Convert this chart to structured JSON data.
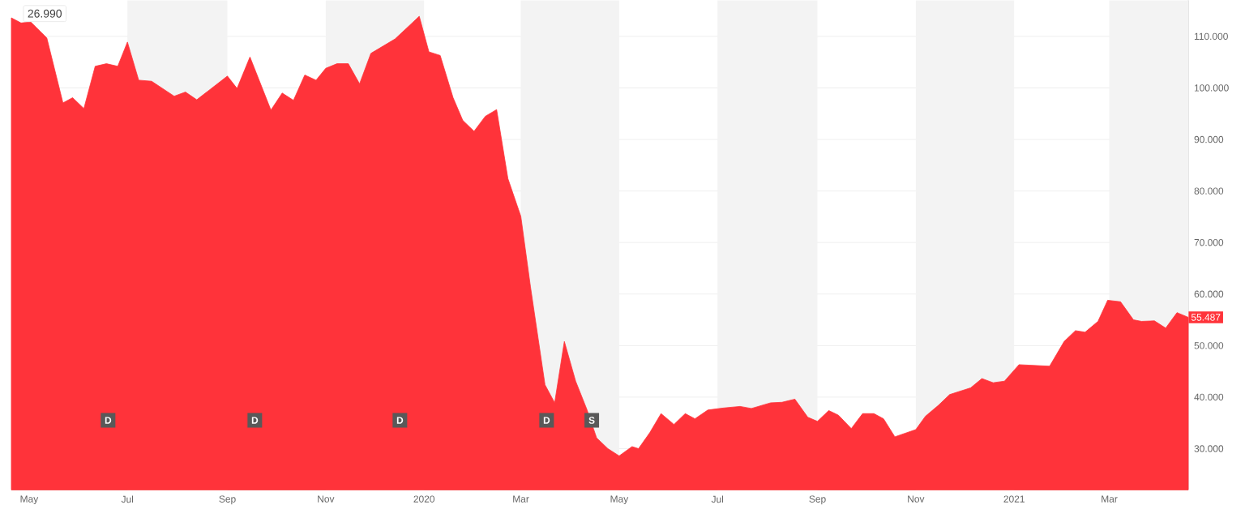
{
  "chart_data": {
    "type": "area",
    "grid": "y",
    "xlim": [
      "2019-04-20",
      "2021-04-19"
    ],
    "ylim": [
      22,
      117
    ],
    "xticks": [
      {
        "value": "2019-05-01",
        "label": "May"
      },
      {
        "value": "2019-07-01",
        "label": "Jul"
      },
      {
        "value": "2019-09-01",
        "label": "Sep"
      },
      {
        "value": "2019-11-01",
        "label": "Nov"
      },
      {
        "value": "2020-01-01",
        "label": "2020"
      },
      {
        "value": "2020-03-01",
        "label": "Mar"
      },
      {
        "value": "2020-05-01",
        "label": "May"
      },
      {
        "value": "2020-07-01",
        "label": "Jul"
      },
      {
        "value": "2020-09-01",
        "label": "Sep"
      },
      {
        "value": "2020-11-01",
        "label": "Nov"
      },
      {
        "value": "2021-01-01",
        "label": "2021"
      },
      {
        "value": "2021-03-01",
        "label": "Mar"
      }
    ],
    "yticks": [
      {
        "value": 30,
        "label": "30.000"
      },
      {
        "value": 40,
        "label": "40.000"
      },
      {
        "value": 50,
        "label": "50.000"
      },
      {
        "value": 60,
        "label": "60.000"
      },
      {
        "value": 70,
        "label": "70.000"
      },
      {
        "value": 80,
        "label": "80.000"
      },
      {
        "value": 90,
        "label": "90.000"
      },
      {
        "value": 100,
        "label": "100.000"
      },
      {
        "value": 110,
        "label": "110.000"
      }
    ],
    "bands": [
      {
        "axis": "x",
        "from": "2019-07-01",
        "to": "2019-09-01",
        "color": "#f3f3f3"
      },
      {
        "axis": "x",
        "from": "2019-11-01",
        "to": "2020-01-01",
        "color": "#f3f3f3"
      },
      {
        "axis": "x",
        "from": "2020-03-01",
        "to": "2020-05-01",
        "color": "#f3f3f3"
      },
      {
        "axis": "x",
        "from": "2020-07-01",
        "to": "2020-09-01",
        "color": "#f3f3f3"
      },
      {
        "axis": "x",
        "from": "2020-11-01",
        "to": "2021-01-01",
        "color": "#f3f3f3"
      },
      {
        "axis": "x",
        "from": "2021-03-01",
        "to": "2021-04-19",
        "color": "#f3f3f3"
      }
    ],
    "series": [
      {
        "color": "#ff333a",
        "x": [
          "2019-04-20",
          "2019-04-26",
          "2019-05-02",
          "2019-05-12",
          "2019-05-22",
          "2019-05-28",
          "2019-06-04",
          "2019-06-11",
          "2019-06-18",
          "2019-06-25",
          "2019-07-01",
          "2019-07-08",
          "2019-07-16",
          "2019-07-30",
          "2019-08-06",
          "2019-08-13",
          "2019-09-01",
          "2019-09-07",
          "2019-09-15",
          "2019-09-28",
          "2019-10-05",
          "2019-10-12",
          "2019-10-19",
          "2019-10-26",
          "2019-11-01",
          "2019-11-08",
          "2019-11-15",
          "2019-11-22",
          "2019-11-29",
          "2019-12-14",
          "2019-12-29",
          "2020-01-04",
          "2020-01-11",
          "2020-01-19",
          "2020-01-25",
          "2020-02-01",
          "2020-02-08",
          "2020-02-15",
          "2020-02-22",
          "2020-03-01",
          "2020-03-07",
          "2020-03-16",
          "2020-03-22",
          "2020-03-28",
          "2020-04-04",
          "2020-04-11",
          "2020-04-17",
          "2020-04-24",
          "2020-05-01",
          "2020-05-09",
          "2020-05-13",
          "2020-05-20",
          "2020-05-27",
          "2020-06-04",
          "2020-06-11",
          "2020-06-17",
          "2020-06-25",
          "2020-07-05",
          "2020-07-15",
          "2020-07-22",
          "2020-08-03",
          "2020-08-10",
          "2020-08-18",
          "2020-08-26",
          "2020-09-01",
          "2020-09-08",
          "2020-09-14",
          "2020-09-22",
          "2020-09-29",
          "2020-10-06",
          "2020-10-12",
          "2020-10-19",
          "2020-11-01",
          "2020-11-07",
          "2020-11-15",
          "2020-11-22",
          "2020-12-05",
          "2020-12-12",
          "2020-12-19",
          "2020-12-26",
          "2021-01-04",
          "2021-01-10",
          "2021-01-23",
          "2021-02-01",
          "2021-02-08",
          "2021-02-14",
          "2021-02-22",
          "2021-02-28",
          "2021-03-08",
          "2021-03-16",
          "2021-03-21",
          "2021-03-29",
          "2021-04-05",
          "2021-04-12",
          "2021-04-19"
        ],
        "values": [
          113.6,
          112.6,
          112.8,
          109.7,
          97.1,
          98.1,
          96.0,
          104.2,
          104.7,
          104.2,
          108.9,
          101.5,
          101.3,
          98.4,
          99.2,
          97.7,
          102.3,
          99.9,
          106.0,
          95.7,
          99.0,
          97.6,
          102.5,
          101.5,
          103.8,
          104.7,
          104.7,
          100.8,
          106.7,
          109.5,
          113.9,
          107.0,
          106.3,
          98.1,
          93.7,
          91.6,
          94.5,
          95.8,
          82.4,
          75.1,
          61.4,
          42.4,
          38.9,
          50.8,
          43.1,
          37.6,
          32.1,
          30.0,
          28.6,
          30.4,
          30.0,
          33.1,
          36.8,
          34.7,
          36.8,
          35.8,
          37.5,
          37.9,
          38.2,
          37.8,
          38.9,
          39.0,
          39.6,
          36.1,
          35.3,
          37.4,
          36.5,
          33.9,
          36.8,
          36.8,
          35.8,
          32.3,
          33.7,
          36.3,
          38.4,
          40.5,
          41.8,
          43.6,
          42.8,
          43.1,
          46.3,
          46.2,
          46.0,
          50.8,
          52.9,
          52.6,
          54.7,
          58.8,
          58.5,
          55.0,
          54.7,
          54.8,
          53.4,
          56.4,
          55.487
        ]
      }
    ],
    "annotations": [
      "26.990",
      {
        "text": "D",
        "x": "2019-06-19",
        "y": 35.5
      },
      {
        "text": "D",
        "x": "2019-09-18",
        "y": 35.5
      },
      {
        "text": "D",
        "x": "2019-12-17",
        "y": 35.5
      },
      {
        "text": "D",
        "x": "2020-03-17",
        "y": 35.5
      },
      {
        "text": "S",
        "x": "2020-04-14",
        "y": 35.5
      },
      {
        "text": "55.487",
        "x": "2021-04-19",
        "y": 55.487
      }
    ]
  }
}
